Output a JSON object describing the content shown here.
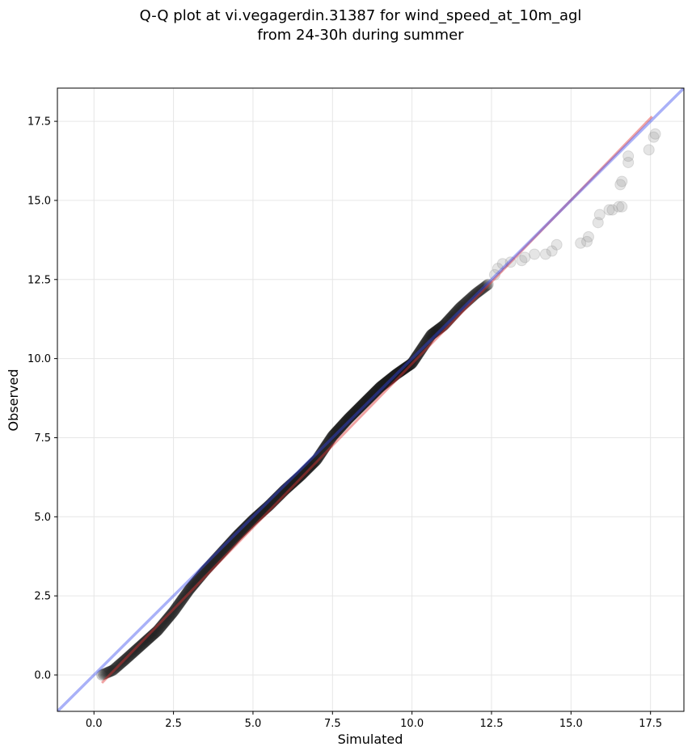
{
  "chart_data": {
    "type": "scatter",
    "title_lines": [
      "Q-Q plot at vi.vegagerdin.31387 for wind_speed_at_10m_agl",
      "from 24-30h during summer"
    ],
    "xlabel": "Simulated",
    "ylabel": "Observed",
    "xlim": [
      -1.15,
      18.55
    ],
    "ylim": [
      -1.15,
      18.55
    ],
    "x_ticks": [
      0.0,
      2.5,
      5.0,
      7.5,
      10.0,
      12.5,
      15.0,
      17.5
    ],
    "y_ticks": [
      0.0,
      2.5,
      5.0,
      7.5,
      10.0,
      12.5,
      15.0,
      17.5
    ],
    "x_tick_labels": [
      "0.0",
      "2.5",
      "5.0",
      "7.5",
      "10.0",
      "12.5",
      "15.0",
      "17.5"
    ],
    "y_tick_labels": [
      "0.0",
      "2.5",
      "5.0",
      "7.5",
      "10.0",
      "12.5",
      "15.0",
      "17.5"
    ],
    "grid": true,
    "reference_line": {
      "color": "#3344ee",
      "x": [
        -1.15,
        18.55
      ],
      "y": [
        -1.15,
        18.55
      ]
    },
    "fit_line": {
      "color": "#dd3333",
      "x": [
        0.25,
        17.55
      ],
      "y": [
        -0.25,
        17.65
      ]
    },
    "quantile_curve": {
      "x": [
        0.25,
        0.6,
        1.0,
        1.5,
        2.0,
        2.5,
        3.0,
        3.5,
        4.0,
        4.5,
        5.0,
        5.5,
        6.0,
        6.5,
        7.0,
        7.5,
        8.0,
        8.5,
        9.0,
        9.5,
        10.0,
        10.3,
        10.6,
        11.0,
        11.5,
        12.0,
        12.4
      ],
      "y": [
        0.0,
        0.15,
        0.5,
        0.95,
        1.4,
        2.0,
        2.7,
        3.3,
        3.85,
        4.4,
        4.9,
        5.35,
        5.85,
        6.3,
        6.8,
        7.55,
        8.1,
        8.6,
        9.1,
        9.5,
        9.85,
        10.3,
        10.75,
        11.05,
        11.6,
        12.05,
        12.35
      ],
      "count": 800
    },
    "tail_points": [
      {
        "x": 12.6,
        "y": 12.65
      },
      {
        "x": 12.7,
        "y": 12.85
      },
      {
        "x": 12.85,
        "y": 13.0
      },
      {
        "x": 13.1,
        "y": 13.05
      },
      {
        "x": 13.45,
        "y": 13.1
      },
      {
        "x": 13.55,
        "y": 13.2
      },
      {
        "x": 13.85,
        "y": 13.3
      },
      {
        "x": 14.2,
        "y": 13.3
      },
      {
        "x": 14.4,
        "y": 13.4
      },
      {
        "x": 14.55,
        "y": 13.6
      },
      {
        "x": 15.3,
        "y": 13.65
      },
      {
        "x": 15.5,
        "y": 13.7
      },
      {
        "x": 15.55,
        "y": 13.85
      },
      {
        "x": 15.85,
        "y": 14.3
      },
      {
        "x": 15.9,
        "y": 14.55
      },
      {
        "x": 16.2,
        "y": 14.7
      },
      {
        "x": 16.3,
        "y": 14.7
      },
      {
        "x": 16.5,
        "y": 14.8
      },
      {
        "x": 16.6,
        "y": 14.8
      },
      {
        "x": 16.55,
        "y": 15.5
      },
      {
        "x": 16.6,
        "y": 15.6
      },
      {
        "x": 17.45,
        "y": 16.6
      },
      {
        "x": 16.8,
        "y": 16.2
      },
      {
        "x": 16.8,
        "y": 16.4
      },
      {
        "x": 17.6,
        "y": 17.0
      },
      {
        "x": 17.65,
        "y": 17.1
      }
    ]
  }
}
